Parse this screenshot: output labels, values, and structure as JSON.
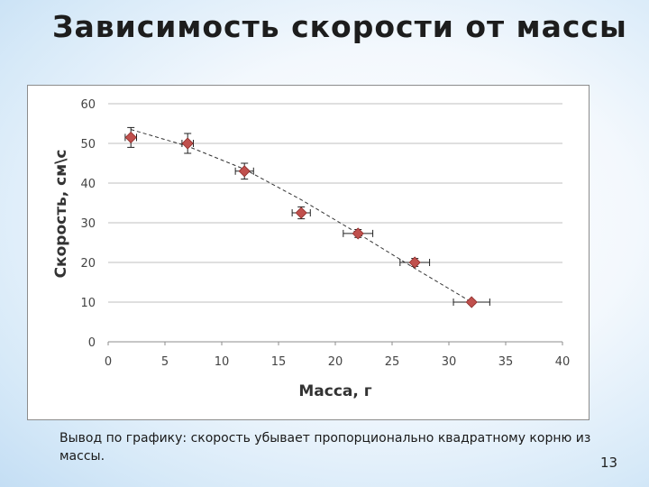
{
  "slide": {
    "title": "Зависимость скорости от массы",
    "conclusion_lead": "Вывод по графику:",
    "conclusion_text": " скорость убывает пропорционально квадратному корню из массы.",
    "page_number": "13"
  },
  "colors": {
    "marker": "#c0504d",
    "marker_edge": "#8b2b28",
    "grid": "#bfbfbf",
    "trend": "#333333",
    "errorbar": "#222222"
  },
  "chart_data": {
    "type": "scatter",
    "xlabel": "Масса, г",
    "ylabel": "Скорость, см\\с",
    "xlim": [
      0,
      40
    ],
    "ylim": [
      0,
      60
    ],
    "x_ticks": [
      0,
      5,
      10,
      15,
      20,
      25,
      30,
      35,
      40
    ],
    "y_ticks": [
      0,
      10,
      20,
      30,
      40,
      50,
      60
    ],
    "grid": "horizontal",
    "trendline": "dashed",
    "points": [
      {
        "x": 2,
        "y": 51.5,
        "x_err": 0.5,
        "y_err": 2.5
      },
      {
        "x": 7,
        "y": 50,
        "x_err": 0.5,
        "y_err": 2.5
      },
      {
        "x": 12,
        "y": 43,
        "x_err": 0.8,
        "y_err": 2
      },
      {
        "x": 17,
        "y": 32.5,
        "x_err": 0.8,
        "y_err": 1.5
      },
      {
        "x": 22,
        "y": 27.3,
        "x_err": 1.3,
        "y_err": 1
      },
      {
        "x": 27,
        "y": 20,
        "x_err": 1.3,
        "y_err": 1
      },
      {
        "x": 32,
        "y": 10,
        "x_err": 1.6,
        "y_err": 0.5
      }
    ],
    "trend_points": [
      {
        "x": 2,
        "y": 53.5
      },
      {
        "x": 7,
        "y": 49.3
      },
      {
        "x": 12,
        "y": 43.5
      },
      {
        "x": 17,
        "y": 35.8
      },
      {
        "x": 22,
        "y": 27.3
      },
      {
        "x": 27,
        "y": 18.5
      },
      {
        "x": 32,
        "y": 10
      }
    ]
  }
}
